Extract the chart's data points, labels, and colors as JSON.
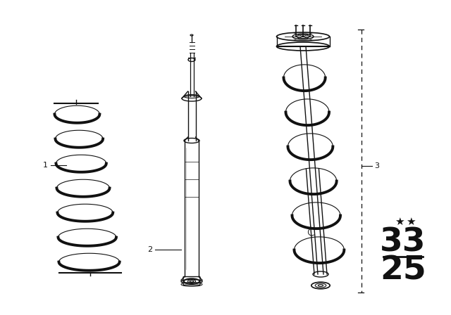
{
  "bg_color": "#ffffff",
  "line_color": "#111111",
  "label1": "1",
  "label2": "2",
  "label3": "3",
  "num1": "33",
  "num2": "25",
  "stars": "★ ★",
  "figsize": [
    6.4,
    4.48
  ],
  "dpi": 100
}
